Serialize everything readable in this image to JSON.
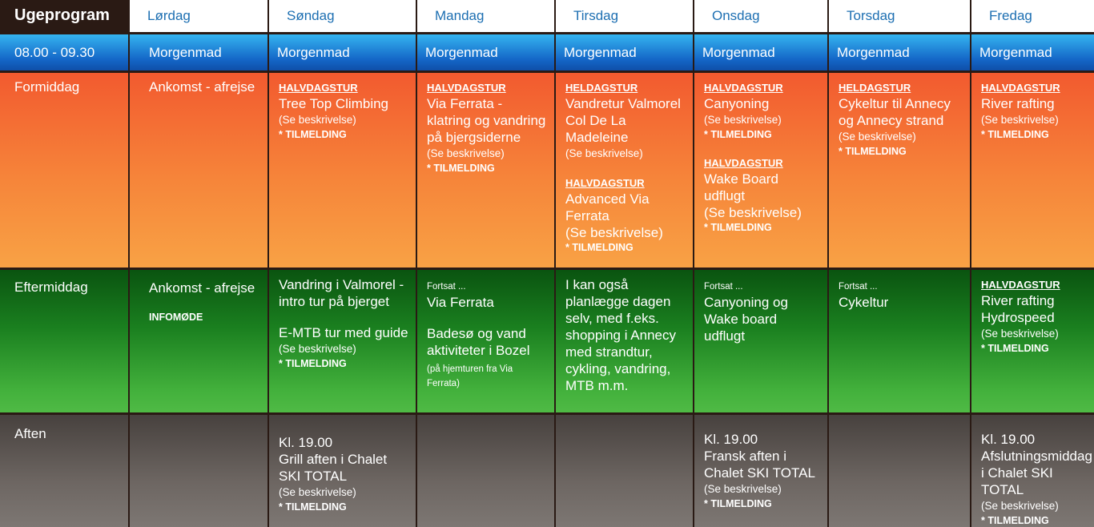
{
  "header": {
    "title": "Ugeprogram",
    "days": [
      "Lørdag",
      "Søndag",
      "Mandag",
      "Tirsdag",
      "Onsdag",
      "Torsdag",
      "Fredag"
    ]
  },
  "breakfast": {
    "time": "08.00 - 09.30",
    "label": "Morgenmad"
  },
  "rows": {
    "formiddag": "Formiddag",
    "eftermiddag": "Eftermiddag",
    "aften": "Aften"
  },
  "common": {
    "halvdag": "HALVDAGSTUR",
    "heldag": "HELDAGSTUR",
    "see": "(Se beskrivelse)",
    "signup": "* TILMELDING",
    "arrival": "Ankomst - afrejse",
    "continued": "Fortsat ...",
    "time19": "Kl. 19.00"
  },
  "formiddag": {
    "sun_title": "Tree Top Climbing",
    "mon_title": "Via Ferrata - klatring og vandring på bjergsiderne",
    "tue_title1": "Vandretur Valmorel Col De La Madeleine",
    "tue_title2": "Advanced Via Ferrata",
    "tue_see2": "(Se beskrivelse)",
    "wed_title1": "Canyoning",
    "wed_title2": "Wake Board udflugt",
    "wed_see2": "(Se beskrivelse)",
    "thu_title": "Cykeltur til Annecy og Annecy strand",
    "fri_title": "River rafting"
  },
  "eftermiddag": {
    "sat_info": "INFOMØDE",
    "sun_title1": "Vandring i Valmorel - intro tur på bjerget",
    "sun_title2": "E-MTB tur med guide",
    "mon_title1": "Via Ferrata",
    "mon_title2": "Badesø og vand aktiviteter i Bozel",
    "mon_note": "(på hjemturen fra Via Ferrata)",
    "tue_text": "I kan også planlægge dagen selv, med f.eks. shopping i Annecy med strandtur, cykling, vandring, MTB m.m.",
    "wed_title": "Canyoning og Wake board udflugt",
    "thu_title": "Cykeltur",
    "fri_title": "River rafting Hydrospeed"
  },
  "aften": {
    "sun_title": "Grill aften i Chalet SKI TOTAL",
    "wed_title": "Fransk aften i Chalet SKI TOTAL",
    "fri_title": "Afslutningsmiddag i Chalet SKI TOTAL"
  }
}
